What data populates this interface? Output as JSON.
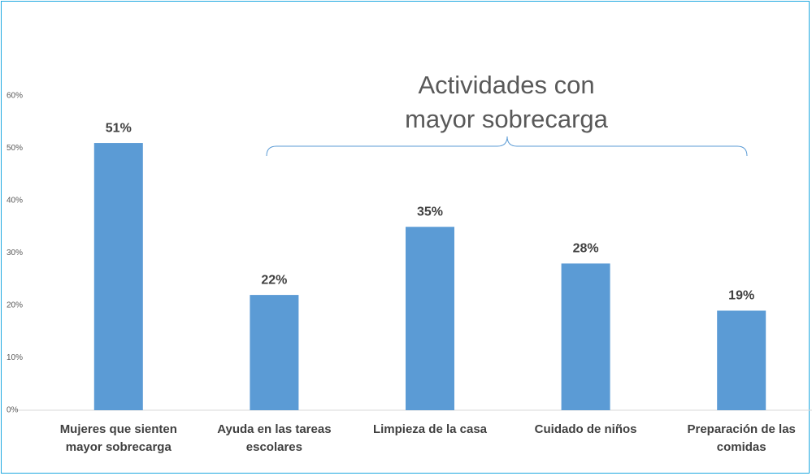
{
  "chart_data": {
    "type": "bar",
    "annotation": "Actividades con mayor sobrecarga",
    "categories": [
      "Mujeres que sienten mayor sobrecarga",
      "Ayuda en las tareas escolares",
      "Limpieza de la casa",
      "Cuidado de niños",
      "Preparación de las comidas"
    ],
    "values": [
      51,
      22,
      35,
      28,
      19
    ],
    "value_labels": [
      "51%",
      "22%",
      "35%",
      "28%",
      "19%"
    ],
    "color": "#5b9bd5",
    "ylim": [
      0,
      60
    ],
    "yticks": [
      {
        "value": 0,
        "label": "0%"
      },
      {
        "value": 10,
        "label": "10%"
      },
      {
        "value": 20,
        "label": "20%"
      },
      {
        "value": 30,
        "label": "30%"
      },
      {
        "value": 40,
        "label": "40%"
      },
      {
        "value": 50,
        "label": "50%"
      },
      {
        "value": 60,
        "label": "60%"
      }
    ],
    "grid": false
  }
}
